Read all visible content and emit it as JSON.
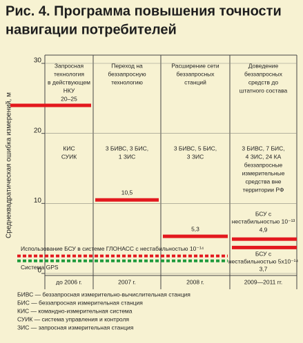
{
  "chart_data": {
    "type": "level",
    "title": [
      "Рис. 4. Программа повышения точности",
      "навигации потребителей"
    ],
    "y_label": "Среднеквадратическая ошибка измерений, м",
    "ylim": [
      0,
      30
    ],
    "yticks": [
      0,
      10,
      20,
      30
    ],
    "grid": true,
    "bar_color": "#e3191e",
    "stages": [
      {
        "category": "до 2006 г.",
        "header": [
          "Запросная",
          "технология",
          "в действующем",
          "НКУ",
          "20–25"
        ],
        "equipment": [
          "КИС",
          "СУИК"
        ],
        "levels": [
          {
            "value": 24
          }
        ]
      },
      {
        "category": "2007 г.",
        "header": [
          "Переход на",
          "беззапросную",
          "технологию"
        ],
        "equipment": [
          "3 БИВС, 3 БИС,",
          "1 ЗИС"
        ],
        "levels": [
          {
            "value": 10.5,
            "label": "10,5"
          }
        ]
      },
      {
        "category": "2008 г.",
        "header": [
          "Расширение сети",
          "беззапросных",
          "станций"
        ],
        "equipment": [
          "3 БИВС, 5 БИС,",
          "3 ЗИС"
        ],
        "levels": [
          {
            "value": 5.3,
            "label": "5,3"
          }
        ]
      },
      {
        "category": "2009—2011 гг.",
        "header": [
          "Доведение",
          "беззапросных",
          "средств до",
          "штатного состава"
        ],
        "equipment": [
          "3 БИВС, 7 БИС,",
          "4 ЗИС, 24 КА",
          "беззапросные",
          "измерительные",
          "средства вне",
          "территории РФ"
        ],
        "levels": [
          {
            "value": 4.9,
            "label": "4,9",
            "note": [
              "БСУ с",
              "нестабильностью 10⁻¹³"
            ]
          },
          {
            "value": 3.7,
            "label": "3,7",
            "note": [
              "БСУ с",
              "нестабильностью 5х10⁻¹⁴"
            ]
          }
        ]
      }
    ],
    "references": [
      {
        "name": "Использование БСУ в системе ГЛОНАСС с нестабильностью 10⁻¹⁴",
        "color": "#e3191e",
        "value": 2.5
      },
      {
        "name": "Система GPS",
        "color": "#1f9a3c",
        "value": 1.8
      }
    ],
    "notes": [
      "БИВС — беззапросная измерительно-вычислительная станция",
      "БИС — беззапросная измерительная станция",
      "КИС — командно-измерительная система",
      "СУИК — система управления и контроля",
      "ЗИС — запросная измерительная станция"
    ]
  }
}
